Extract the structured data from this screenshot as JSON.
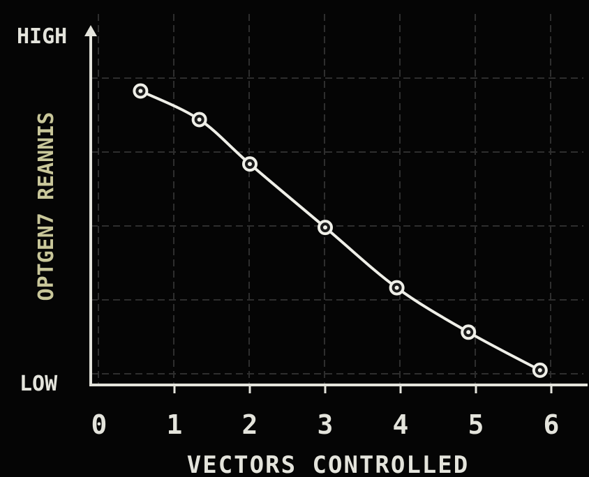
{
  "chart_data": {
    "type": "line",
    "title": "",
    "xlabel": "VECTORS CONTROLLED",
    "ylabel": "OPTGEN7 REANNIS",
    "y_high_label": "HIGH",
    "y_low_label": "LOW",
    "x_ticks": [
      "0",
      "1",
      "2",
      "3",
      "4",
      "5",
      "6"
    ],
    "xlim": [
      0,
      6.3
    ],
    "ylim": [
      0,
      1
    ],
    "grid": true,
    "x": [
      0.55,
      1.33,
      2.0,
      3.0,
      3.95,
      4.9,
      5.85
    ],
    "y": [
      0.9,
      0.81,
      0.67,
      0.47,
      0.28,
      0.14,
      0.02
    ],
    "colors": {
      "background": "#050505",
      "axis": "#e4e4dc",
      "series": "#efefe8",
      "ylabel": "#c9c79a",
      "grid": "#2e2e2e"
    }
  }
}
